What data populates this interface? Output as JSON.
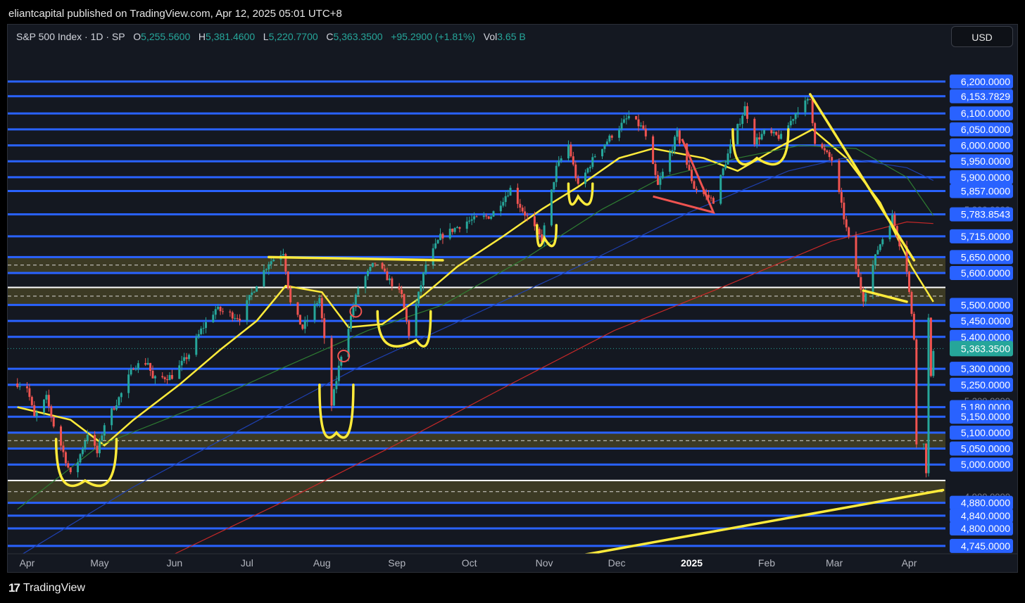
{
  "publisher_line": "eliantcapital published on TradingView.com, Apr 12, 2025 05:01 UTC+8",
  "legend": {
    "symbol": "S&P 500 Index · 1D · SP",
    "o_label": "O",
    "o_value": "5,255.5600",
    "h_label": "H",
    "h_value": "5,381.4600",
    "l_label": "L",
    "l_value": "5,220.7700",
    "c_label": "C",
    "c_value": "5,363.3500",
    "change": "+95.2900 (+1.81%)",
    "vol_label": "Vol",
    "vol_value": "3.65 B"
  },
  "currency_button": "USD",
  "footer_brand": "TradingView",
  "colors": {
    "background": "#141821",
    "level_line": "#2962ff",
    "level_label_bg": "#2962ff",
    "current_price_bg": "#26a69a",
    "up_candle": "#26a69a",
    "down_candle": "#ef5350",
    "annotation": "#ffeb3b",
    "zone_fill": "#4a4526",
    "ma_short": "#ffeb3b",
    "ma_50": "#2e7d32",
    "ma_100": "#1e40b0",
    "ma_200": "#c62828"
  },
  "chart_data": {
    "type": "candlestick",
    "symbol": "S&P 500 Index",
    "interval": "1D",
    "x_tick_labels": [
      "Apr",
      "May",
      "Jun",
      "Jul",
      "Aug",
      "Sep",
      "Oct",
      "Nov",
      "Dec",
      "2025",
      "Feb",
      "Mar",
      "Apr"
    ],
    "y_range": [
      4725,
      6290
    ],
    "current_price": "5,363.3500",
    "price_levels": [
      "6,200.0000",
      "6,153.7829",
      "6,100.0000",
      "6,050.0000",
      "6,000.0000",
      "5,950.0000",
      "5,900.0000",
      "5,857.0000",
      "5,783.8543",
      "5,715.0000",
      "5,650.0000",
      "5,600.0000",
      "5,500.0000",
      "5,450.0000",
      "5,400.0000",
      "5,300.0000",
      "5,250.0000",
      "5,180.0000",
      "5,150.0000",
      "5,100.0000",
      "5,050.0000",
      "5,000.0000",
      "4,880.0000",
      "4,840.0000",
      "4,800.0000",
      "4,745.0000"
    ],
    "faint_axis_ticks": [
      "5,800.0000",
      "5,200.0000",
      "4,900.0000"
    ],
    "zones": [
      {
        "top": 5650,
        "bottom": 5600
      },
      {
        "top": 5555,
        "bottom": 5500
      },
      {
        "top": 5100,
        "bottom": 5050
      },
      {
        "top": 4950,
        "bottom": 4880
      }
    ],
    "close_path": [
      [
        "2024-03-28",
        5254
      ],
      [
        "2024-04-01",
        5243
      ],
      [
        "2024-04-04",
        5147
      ],
      [
        "2024-04-09",
        5209
      ],
      [
        "2024-04-12",
        5123
      ],
      [
        "2024-04-15",
        5061
      ],
      [
        "2024-04-19",
        4967
      ],
      [
        "2024-04-22",
        5010
      ],
      [
        "2024-04-26",
        5099
      ],
      [
        "2024-04-30",
        5035
      ],
      [
        "2024-05-03",
        5127
      ],
      [
        "2024-05-10",
        5222
      ],
      [
        "2024-05-15",
        5308
      ],
      [
        "2024-05-21",
        5321
      ],
      [
        "2024-05-23",
        5267
      ],
      [
        "2024-05-31",
        5277
      ],
      [
        "2024-06-07",
        5346
      ],
      [
        "2024-06-12",
        5421
      ],
      [
        "2024-06-18",
        5487
      ],
      [
        "2024-06-28",
        5460
      ],
      [
        "2024-07-05",
        5567
      ],
      [
        "2024-07-10",
        5633
      ],
      [
        "2024-07-16",
        5667
      ],
      [
        "2024-07-19",
        5505
      ],
      [
        "2024-07-24",
        5427
      ],
      [
        "2024-07-31",
        5522
      ],
      [
        "2024-08-05",
        5186
      ],
      [
        "2024-08-09",
        5344
      ],
      [
        "2024-08-16",
        5554
      ],
      [
        "2024-08-23",
        5634
      ],
      [
        "2024-09-03",
        5528
      ],
      [
        "2024-09-06",
        5408
      ],
      [
        "2024-09-13",
        5626
      ],
      [
        "2024-09-19",
        5713
      ],
      [
        "2024-09-30",
        5762
      ],
      [
        "2024-10-10",
        5780
      ],
      [
        "2024-10-18",
        5864
      ],
      [
        "2024-10-23",
        5797
      ],
      [
        "2024-10-31",
        5705
      ],
      [
        "2024-11-06",
        5929
      ],
      [
        "2024-11-11",
        6001
      ],
      [
        "2024-11-15",
        5870
      ],
      [
        "2024-11-22",
        5969
      ],
      [
        "2024-11-29",
        6032
      ],
      [
        "2024-12-06",
        6090
      ],
      [
        "2024-12-12",
        6051
      ],
      [
        "2024-12-18",
        5872
      ],
      [
        "2024-12-26",
        6037
      ],
      [
        "2025-01-02",
        5868
      ],
      [
        "2025-01-10",
        5827
      ],
      [
        "2025-01-17",
        5996
      ],
      [
        "2025-01-23",
        6118
      ],
      [
        "2025-01-27",
        6012
      ],
      [
        "2025-01-31",
        6040
      ],
      [
        "2025-02-07",
        6025
      ],
      [
        "2025-02-14",
        6114
      ],
      [
        "2025-02-19",
        6144
      ],
      [
        "2025-02-21",
        6013
      ],
      [
        "2025-02-28",
        5954
      ],
      [
        "2025-03-06",
        5738
      ],
      [
        "2025-03-10",
        5614
      ],
      [
        "2025-03-13",
        5521
      ],
      [
        "2025-03-19",
        5675
      ],
      [
        "2025-03-25",
        5776
      ],
      [
        "2025-03-31",
        5611
      ],
      [
        "2025-04-03",
        5396
      ],
      [
        "2025-04-04",
        5074
      ],
      [
        "2025-04-07",
        5062
      ],
      [
        "2025-04-08",
        4982
      ],
      [
        "2025-04-09",
        5456
      ],
      [
        "2025-04-10",
        5268
      ],
      [
        "2025-04-11",
        5363
      ]
    ],
    "moving_averages": [
      {
        "color": "#ffeb3b",
        "points": [
          [
            "2024-03-28",
            5180
          ],
          [
            "2024-04-19",
            5140
          ],
          [
            "2024-05-03",
            5060
          ],
          [
            "2024-05-15",
            5140
          ],
          [
            "2024-06-03",
            5250
          ],
          [
            "2024-06-20",
            5360
          ],
          [
            "2024-07-05",
            5450
          ],
          [
            "2024-07-17",
            5560
          ],
          [
            "2024-08-01",
            5540
          ],
          [
            "2024-08-12",
            5430
          ],
          [
            "2024-08-26",
            5440
          ],
          [
            "2024-09-12",
            5530
          ],
          [
            "2024-09-26",
            5620
          ],
          [
            "2024-10-14",
            5710
          ],
          [
            "2024-10-31",
            5800
          ],
          [
            "2024-11-15",
            5870
          ],
          [
            "2024-12-02",
            5960
          ],
          [
            "2024-12-16",
            5990
          ],
          [
            "2025-01-06",
            5960
          ],
          [
            "2025-01-20",
            5920
          ],
          [
            "2025-02-05",
            5990
          ],
          [
            "2025-02-20",
            6050
          ],
          [
            "2025-03-06",
            5960
          ],
          [
            "2025-03-20",
            5820
          ],
          [
            "2025-04-02",
            5620
          ],
          [
            "2025-04-11",
            5510
          ]
        ]
      },
      {
        "color": "#2e7d32",
        "points": [
          [
            "2024-03-28",
            4860
          ],
          [
            "2024-05-01",
            5060
          ],
          [
            "2024-06-10",
            5180
          ],
          [
            "2024-07-15",
            5300
          ],
          [
            "2024-08-20",
            5420
          ],
          [
            "2024-09-20",
            5500
          ],
          [
            "2024-10-25",
            5650
          ],
          [
            "2024-11-25",
            5800
          ],
          [
            "2024-12-20",
            5900
          ],
          [
            "2025-01-20",
            5960
          ],
          [
            "2025-02-15",
            6000
          ],
          [
            "2025-03-10",
            5990
          ],
          [
            "2025-03-31",
            5900
          ],
          [
            "2025-04-11",
            5780
          ]
        ]
      },
      {
        "color": "#1e40b0",
        "points": [
          [
            "2024-03-28",
            4710
          ],
          [
            "2024-05-15",
            4930
          ],
          [
            "2024-07-01",
            5120
          ],
          [
            "2024-08-15",
            5300
          ],
          [
            "2024-09-30",
            5460
          ],
          [
            "2024-11-15",
            5620
          ],
          [
            "2024-12-31",
            5790
          ],
          [
            "2025-02-10",
            5920
          ],
          [
            "2025-03-05",
            5960
          ],
          [
            "2025-03-31",
            5930
          ],
          [
            "2025-04-11",
            5890
          ]
        ]
      },
      {
        "color": "#c62828",
        "points": [
          [
            "2024-06-01",
            4720
          ],
          [
            "2024-07-15",
            4880
          ],
          [
            "2024-08-31",
            5060
          ],
          [
            "2024-10-15",
            5240
          ],
          [
            "2024-11-30",
            5420
          ],
          [
            "2025-01-15",
            5560
          ],
          [
            "2025-02-28",
            5700
          ],
          [
            "2025-03-31",
            5760
          ],
          [
            "2025-04-11",
            5755
          ]
        ]
      }
    ],
    "trendlines": [
      {
        "from": [
          "2024-10-21",
          4680
        ],
        "to": [
          "2025-04-15",
          4920
        ]
      },
      {
        "from": [
          "2025-02-19",
          6160
        ],
        "to": [
          "2025-04-03",
          5640
        ]
      },
      {
        "from": [
          "2024-07-10",
          5650
        ],
        "to": [
          "2024-09-20",
          5640
        ]
      },
      {
        "from": [
          "2025-03-13",
          5545
        ],
        "to": [
          "2025-03-31",
          5510
        ]
      }
    ]
  }
}
